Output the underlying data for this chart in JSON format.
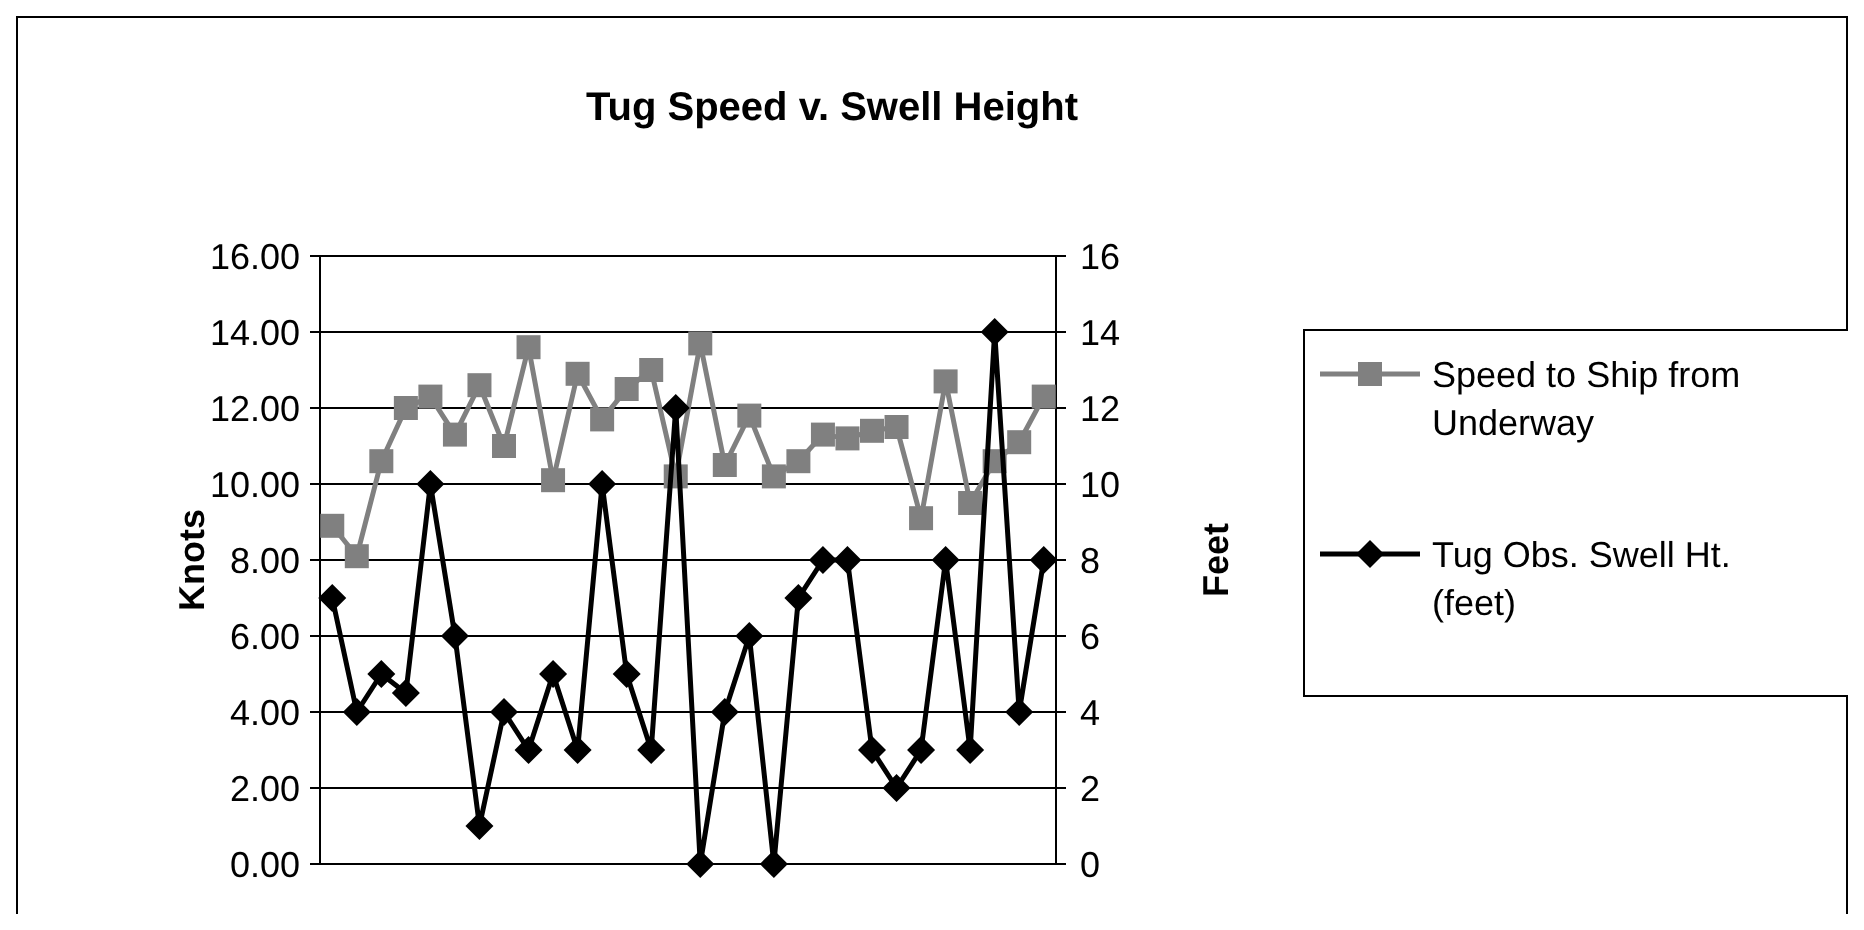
{
  "chart_data": {
    "type": "line",
    "title": "Tug Speed v. Swell Height",
    "ylabel": "Knots",
    "y2label": "Feet",
    "categories": [
      null,
      null,
      null,
      null,
      null,
      null,
      null,
      null,
      null,
      null,
      null,
      null,
      null,
      null,
      null,
      null,
      null,
      null,
      null,
      null,
      null,
      null,
      null,
      null,
      null,
      null,
      null,
      null,
      null,
      null
    ],
    "series": [
      {
        "name": "Speed to Ship from Underway",
        "color": "#808080",
        "marker": "square",
        "values": [
          8.9,
          8.1,
          10.6,
          12,
          12.3,
          11.3,
          12.6,
          11,
          13.6,
          10.1,
          12.9,
          11.7,
          12.5,
          13,
          10.2,
          13.7,
          10.5,
          11.8,
          10.2,
          10.6,
          11.3,
          11.2,
          11.4,
          11.5,
          9.1,
          12.7,
          9.5,
          10.6,
          11.1,
          12.3
        ]
      },
      {
        "name": "Tug Obs. Swell Ht. (feet)",
        "color": "#000000",
        "marker": "diamond",
        "axis": "y2",
        "values": [
          7,
          4,
          5,
          4.5,
          10,
          6,
          1,
          4,
          3,
          5,
          3,
          10,
          5,
          3,
          12,
          0,
          4,
          6,
          0,
          7,
          8,
          8,
          3,
          2,
          3,
          8,
          3,
          14,
          4,
          8
        ]
      }
    ],
    "ylim": [
      0,
      16
    ],
    "yticks": [
      {
        "value": 0,
        "label": "0.00"
      },
      {
        "value": 2,
        "label": "2.00"
      },
      {
        "value": 4,
        "label": "4.00"
      },
      {
        "value": 6,
        "label": "6.00"
      },
      {
        "value": 8,
        "label": "8.00"
      },
      {
        "value": 10,
        "label": "10.00"
      },
      {
        "value": 12,
        "label": "12.00"
      },
      {
        "value": 14,
        "label": "14.00"
      },
      {
        "value": 16,
        "label": "16.00"
      }
    ],
    "y2lim": [
      0,
      16
    ],
    "y2ticks": [
      0,
      2,
      4,
      6,
      8,
      10,
      12,
      14,
      16
    ],
    "grid": "y",
    "legend": "right"
  }
}
